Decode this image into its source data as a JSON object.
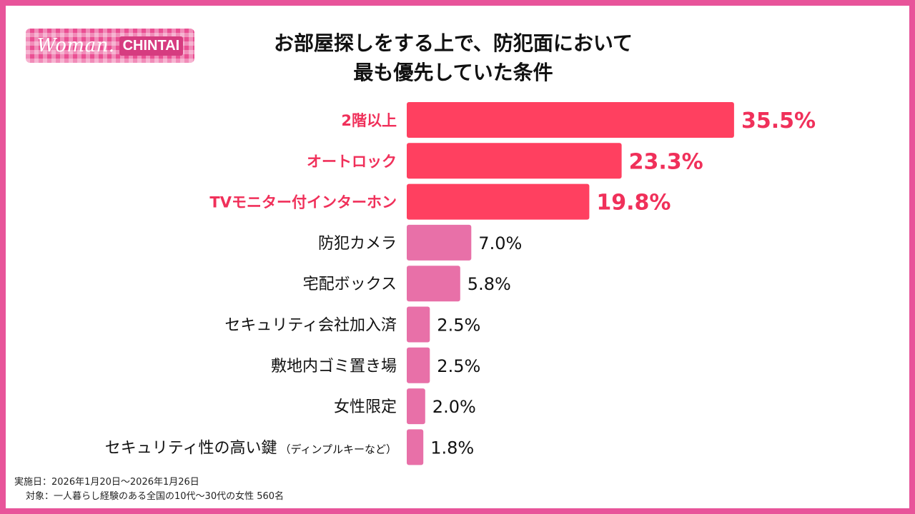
{
  "logo": {
    "woman": "Woman.",
    "chintai": "CHINTAI"
  },
  "title_lines": [
    "お部屋探しをする上で、防犯面において",
    "最も優先していた条件"
  ],
  "colors": {
    "frame": "#e8549a",
    "top_bar": "#ff4060",
    "top_label": "#f0305a",
    "other_bar": "#e870a8",
    "text": "#111111"
  },
  "chart_data": {
    "type": "bar",
    "orientation": "horizontal",
    "title": "お部屋探しをする上で、防犯面において最も優先していた条件",
    "categories": [
      "2階以上",
      "オートロック",
      "TVモニター付インターホン",
      "防犯カメラ",
      "宅配ボックス",
      "セキュリティ会社加入済",
      "敷地内ゴミ置き場",
      "女性限定",
      "セキュリティ性の高い鍵"
    ],
    "category_notes": [
      "",
      "",
      "",
      "",
      "",
      "",
      "",
      "",
      "（ディンプルキーなど）"
    ],
    "values": [
      35.5,
      23.3,
      19.8,
      7.0,
      5.8,
      2.5,
      2.5,
      2.0,
      1.8
    ],
    "value_labels": [
      "35.5%",
      "23.3%",
      "19.8%",
      "7.0%",
      "5.8%",
      "2.5%",
      "2.5%",
      "2.0%",
      "1.8%"
    ],
    "highlight_top": 3,
    "unit": "%",
    "xlim": [
      0,
      40
    ],
    "grid": false,
    "legend": "none"
  },
  "footnote": {
    "date": "実施日：2026年1月20日～2026年1月26日",
    "target": "対象：一人暮らし経験のある全国の10代～30代の女性 560名"
  }
}
